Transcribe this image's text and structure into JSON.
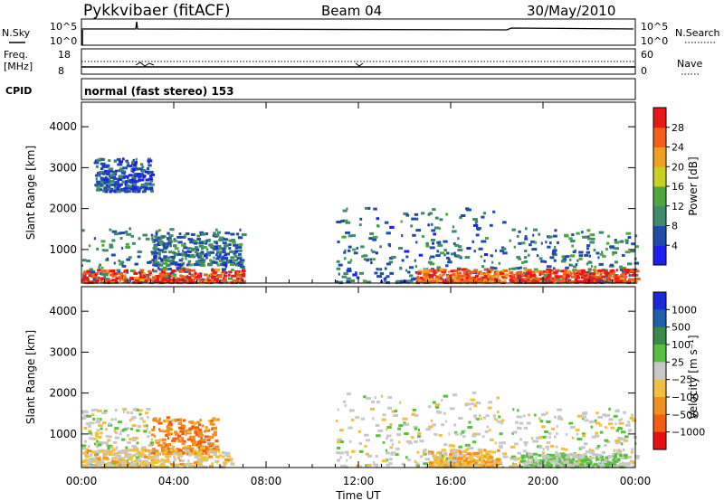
{
  "header": {
    "station": "Pykkvibaer (fitACF)",
    "beam": "Beam 04",
    "date": "30/May/2010"
  },
  "strip": {
    "nsky_label": "N.Sky",
    "nsearch_label": "N.Search",
    "freq_label_line1": "Freq.",
    "freq_label_line2": "[MHz]",
    "nave_label": "Nave",
    "cpid_label": "CPID",
    "nsky_ticks": [
      "10^5",
      "10^0"
    ],
    "nsearch_ticks": [
      "10^5",
      "10^0"
    ],
    "freq_ticks": [
      "18",
      "8"
    ],
    "nave_ticks": [
      "60",
      "0"
    ],
    "cpid_text": "normal (fast stereo) 153"
  },
  "chart_data": {
    "type": "heatmap",
    "xlabel": "Time UT",
    "xlim": [
      "00:00",
      "24:00"
    ],
    "x_ticks": [
      "00:00",
      "04:00",
      "08:00",
      "12:00",
      "16:00",
      "20:00",
      "00:00"
    ],
    "panels": [
      {
        "quantity": "power",
        "ylabel": "Slant Range [km]",
        "ylim": [
          180,
          4600
        ],
        "y_ticks": [
          "1000",
          "2000",
          "3000",
          "4000"
        ],
        "colorbar_label": "Power [dB]",
        "colorbar_ticks": [
          "4",
          "8",
          "12",
          "16",
          "20",
          "24",
          "28"
        ],
        "colorbar_range": [
          0,
          32
        ],
        "colors": [
          "#1f1ff0",
          "#1f4ca8",
          "#3f8a6a",
          "#4fa63f",
          "#c8d020",
          "#f0a020",
          "#f06018",
          "#e81818"
        ],
        "regions": [
          {
            "t": [
              0.0,
              7.0
            ],
            "range_km": [
              180,
              1500
            ],
            "level_db": 9
          },
          {
            "t": [
              0.0,
              7.0
            ],
            "range_km": [
              180,
              500
            ],
            "level_db": 28
          },
          {
            "t": [
              3.0,
              7.0
            ],
            "range_km": [
              600,
              1400
            ],
            "level_db": 8
          },
          {
            "t": [
              11.0,
              18.3
            ],
            "range_km": [
              180,
              2000
            ],
            "level_db": 8
          },
          {
            "t": [
              14.5,
              18.3
            ],
            "range_km": [
              180,
              500
            ],
            "level_db": 26
          },
          {
            "t": [
              18.5,
              24.0
            ],
            "range_km": [
              180,
              1500
            ],
            "level_db": 9
          },
          {
            "t": [
              18.5,
              24.0
            ],
            "range_km": [
              180,
              500
            ],
            "level_db": 28
          },
          {
            "t": [
              0.5,
              3.0
            ],
            "range_km": [
              2400,
              3200
            ],
            "level_db": 6
          }
        ]
      },
      {
        "quantity": "velocity",
        "ylabel": "Slant Range [km]",
        "ylim": [
          180,
          4600
        ],
        "y_ticks": [
          "1000",
          "2000",
          "3000",
          "4000"
        ],
        "colorbar_label": "Velocity [m s⁻¹]",
        "colorbar_ticks": [
          "1000",
          "500",
          "100",
          "25",
          "−25",
          "−100",
          "−500",
          "−1000"
        ],
        "colorbar_range": [
          -1200,
          1200
        ],
        "colors": [
          "#1a2ad8",
          "#2060a8",
          "#3a8a4a",
          "#58c040",
          "#c8c8c8",
          "#f0c040",
          "#f09020",
          "#f06010",
          "#e81010"
        ],
        "regions": [
          {
            "t": [
              0.0,
              3.0
            ],
            "range_km": [
              180,
              1600
            ],
            "velocity": 0
          },
          {
            "t": [
              3.0,
              5.8
            ],
            "range_km": [
              500,
              1400
            ],
            "velocity": -600
          },
          {
            "t": [
              0.0,
              6.5
            ],
            "range_km": [
              180,
              600
            ],
            "velocity": -200
          },
          {
            "t": [
              11.0,
              18.3
            ],
            "range_km": [
              180,
              2000
            ],
            "velocity": 0
          },
          {
            "t": [
              15.0,
              18.0
            ],
            "range_km": [
              180,
              600
            ],
            "velocity": -300
          },
          {
            "t": [
              18.5,
              24.0
            ],
            "range_km": [
              180,
              1600
            ],
            "velocity": 0
          },
          {
            "t": [
              19.0,
              23.5
            ],
            "range_km": [
              180,
              500
            ],
            "velocity": 150
          }
        ]
      }
    ]
  }
}
